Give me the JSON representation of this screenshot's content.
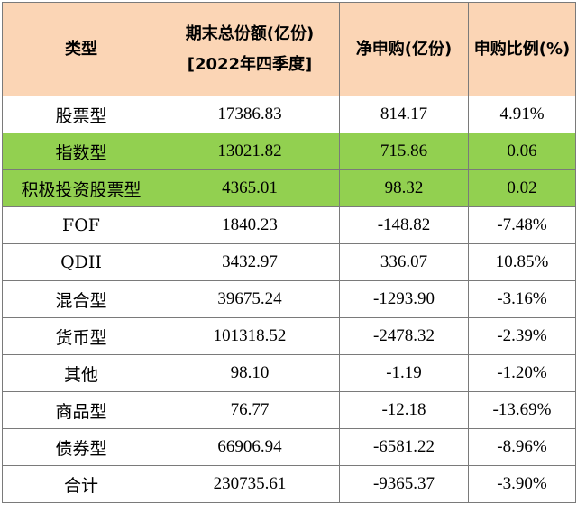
{
  "table": {
    "headers": {
      "type": "类型",
      "aum": "期末总份额(亿份)[2022年四季度]",
      "net_sub": "净申购(亿份)",
      "ratio": "申购比例(%)"
    },
    "colors": {
      "header_bg": "#fbd5b5",
      "highlight_bg": "#92d050",
      "border": "#7a7a7a"
    },
    "rows": [
      {
        "type": "股票型",
        "aum": "17386.83",
        "net_sub": "814.17",
        "ratio": "4.91%",
        "highlight": false
      },
      {
        "type": "指数型",
        "aum": "13021.82",
        "net_sub": "715.86",
        "ratio": "0.06",
        "highlight": true
      },
      {
        "type": "积极投资股票型",
        "aum": "4365.01",
        "net_sub": "98.32",
        "ratio": "0.02",
        "highlight": true
      },
      {
        "type": "FOF",
        "aum": "1840.23",
        "net_sub": "-148.82",
        "ratio": "-7.48%",
        "highlight": false
      },
      {
        "type": "QDII",
        "aum": "3432.97",
        "net_sub": "336.07",
        "ratio": "10.85%",
        "highlight": false
      },
      {
        "type": "混合型",
        "aum": "39675.24",
        "net_sub": "-1293.90",
        "ratio": "-3.16%",
        "highlight": false
      },
      {
        "type": "货币型",
        "aum": "101318.52",
        "net_sub": "-2478.32",
        "ratio": "-2.39%",
        "highlight": false
      },
      {
        "type": "其他",
        "aum": "98.10",
        "net_sub": "-1.19",
        "ratio": "-1.20%",
        "highlight": false
      },
      {
        "type": "商品型",
        "aum": "76.77",
        "net_sub": "-12.18",
        "ratio": "-13.69%",
        "highlight": false
      },
      {
        "type": "债券型",
        "aum": "66906.94",
        "net_sub": "-6581.22",
        "ratio": "-8.96%",
        "highlight": false
      },
      {
        "type": "合计",
        "aum": "230735.61",
        "net_sub": "-9365.37",
        "ratio": "-3.90%",
        "highlight": false
      }
    ]
  }
}
